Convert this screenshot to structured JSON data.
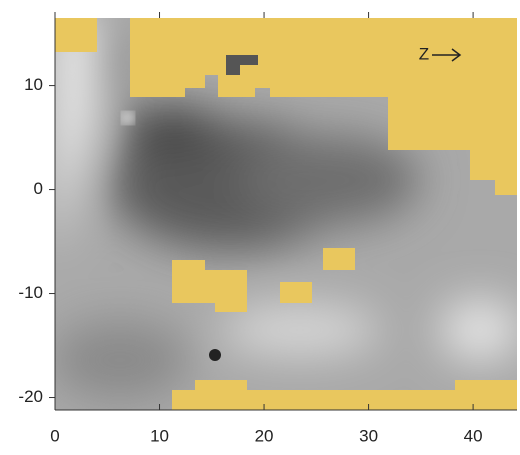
{
  "chart_data": {
    "type": "image",
    "annotation": "Z",
    "xlim": [
      0,
      44.2
    ],
    "xticks": [
      0,
      10,
      20,
      30,
      40
    ],
    "ylim": [
      -21.2,
      16.5
    ],
    "yticks": [
      -20,
      -10,
      0,
      10
    ],
    "mask_color": "#e9c75e"
  }
}
